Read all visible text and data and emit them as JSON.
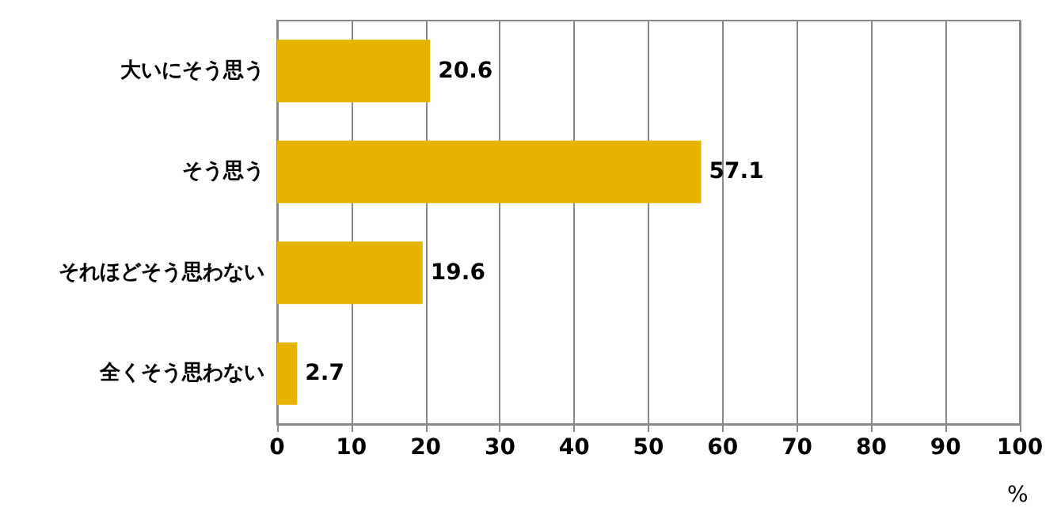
{
  "chart_data": {
    "type": "bar",
    "orientation": "horizontal",
    "categories": [
      "大いにそう思う",
      "そう思う",
      "それほどそう思わない",
      "全くそう思わない"
    ],
    "values": [
      20.6,
      57.1,
      19.6,
      2.7
    ],
    "color": "#e6b400",
    "xlim": [
      0,
      100
    ],
    "xticks": [
      0,
      10,
      20,
      30,
      40,
      50,
      60,
      70,
      80,
      90,
      100
    ],
    "xlabel": "%",
    "grid": "x",
    "data_labels": true
  }
}
